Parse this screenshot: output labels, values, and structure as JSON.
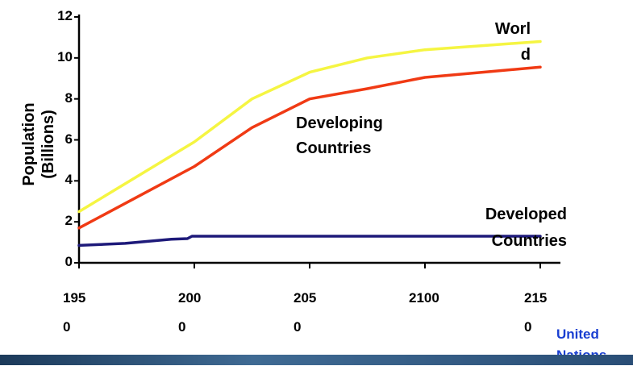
{
  "chart_data": {
    "type": "line",
    "ylabel": "Population\n(Billions)",
    "xlabel": "",
    "ylim": [
      0,
      12
    ],
    "xlim": [
      1950,
      2150
    ],
    "y_ticks": [
      "0",
      "2",
      "4",
      "6",
      "8",
      "10",
      "12"
    ],
    "x_ticks": [
      {
        "value": 1950,
        "label": "195\n0"
      },
      {
        "value": 2000,
        "label": "200\n0"
      },
      {
        "value": 2050,
        "label": "205\n0"
      },
      {
        "value": 2100,
        "label": "2100"
      },
      {
        "value": 2150,
        "label": "215\n0"
      }
    ],
    "series": [
      {
        "name": "Worl\nd",
        "color": "#f5f542",
        "points": [
          [
            1950,
            2.5
          ],
          [
            1975,
            4.2
          ],
          [
            2000,
            5.9
          ],
          [
            2025,
            8.0
          ],
          [
            2050,
            9.3
          ],
          [
            2075,
            10.0
          ],
          [
            2100,
            10.4
          ],
          [
            2125,
            10.6
          ],
          [
            2150,
            10.8
          ]
        ]
      },
      {
        "name": "Developing\nCountries",
        "color": "#f03a14",
        "points": [
          [
            1950,
            1.7
          ],
          [
            1975,
            3.2
          ],
          [
            2000,
            4.7
          ],
          [
            2025,
            6.6
          ],
          [
            2050,
            8.0
          ],
          [
            2075,
            8.5
          ],
          [
            2100,
            9.05
          ],
          [
            2125,
            9.3
          ],
          [
            2150,
            9.55
          ]
        ]
      },
      {
        "name": "Developed\nCountries",
        "color": "#1e1a7a",
        "points": [
          [
            1950,
            0.85
          ],
          [
            1970,
            0.95
          ],
          [
            1990,
            1.15
          ],
          [
            1997,
            1.18
          ],
          [
            1999,
            1.3
          ],
          [
            2050,
            1.3
          ],
          [
            2100,
            1.3
          ],
          [
            2150,
            1.3
          ]
        ]
      }
    ]
  },
  "source": "United\nNations"
}
